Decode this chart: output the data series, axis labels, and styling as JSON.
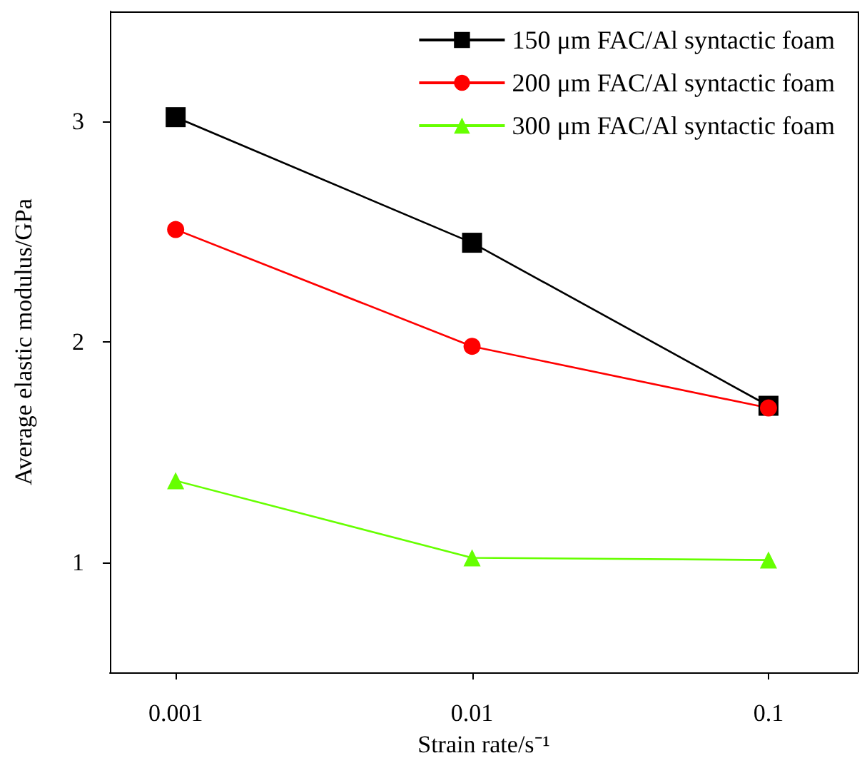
{
  "chart_data": {
    "type": "line",
    "xlabel": "Strain rate/s⁻¹",
    "ylabel": "Average elastic modulus/GPa",
    "x": [
      0.001,
      0.01,
      0.1
    ],
    "log": "x",
    "xlim": [
      0.0006,
      0.2
    ],
    "xticks": [
      0.001,
      0.01,
      0.1
    ],
    "ylim": [
      0.5,
      3.5
    ],
    "yticks": [
      1,
      2,
      3
    ],
    "grid": false,
    "legend": "top right",
    "series": [
      {
        "name": "150 μm FAC/Al syntactic foam",
        "color": "#000000",
        "marker": "square",
        "values": [
          3.02,
          2.45,
          1.71
        ]
      },
      {
        "name": "200 μm FAC/Al syntactic foam",
        "color": "#ff0000",
        "marker": "circle",
        "values": [
          2.51,
          1.98,
          1.7
        ]
      },
      {
        "name": "300 μm FAC/Al syntactic foam",
        "color": "#66ff00",
        "marker": "triangle",
        "values": [
          1.37,
          1.02,
          1.01
        ]
      }
    ]
  }
}
